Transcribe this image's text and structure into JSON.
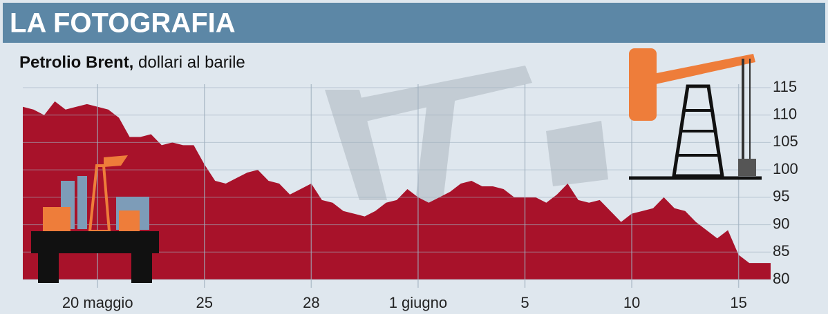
{
  "chart_data": {
    "type": "area",
    "title": "LA FOTOGRAFIA",
    "subtitle": "Petrolio Brent,",
    "subtitle_detail": "dollari al barile",
    "color": "#a8122a",
    "categories": [
      null,
      null,
      null,
      null,
      null,
      null,
      null,
      "20 maggio",
      null,
      null,
      null,
      null,
      null,
      null,
      null,
      null,
      null,
      "25",
      null,
      null,
      null,
      null,
      null,
      null,
      null,
      null,
      null,
      "28",
      null,
      null,
      null,
      null,
      null,
      null,
      null,
      null,
      null,
      "1 giugno",
      null,
      null,
      null,
      null,
      null,
      null,
      null,
      null,
      null,
      "5",
      null,
      null,
      null,
      null,
      null,
      null,
      null,
      null,
      null,
      "10",
      null,
      null,
      null,
      null,
      null,
      null,
      null,
      null,
      null,
      "15",
      null,
      null,
      null
    ],
    "values": [
      111.5,
      111,
      110,
      112.5,
      111,
      111.5,
      112,
      111.5,
      111,
      109.5,
      106,
      106,
      106.5,
      104.5,
      105,
      104.5,
      104.5,
      101,
      98,
      97.5,
      98.5,
      99.5,
      100,
      98,
      97.5,
      95.5,
      96.5,
      97.5,
      94.5,
      94,
      92.5,
      92,
      91.5,
      92.5,
      94,
      94.5,
      96.5,
      95,
      94,
      95,
      96,
      97.5,
      98,
      97,
      97,
      96.5,
      95,
      95,
      95,
      94,
      95.5,
      97.5,
      94.5,
      94,
      94.5,
      92.5,
      90.5,
      92,
      92.5,
      93,
      95,
      93,
      92.5,
      90.5,
      89,
      87.5,
      89,
      84.5,
      83,
      83,
      83
    ],
    "ylim": [
      80,
      115
    ],
    "yticks": [
      80,
      85,
      90,
      95,
      100,
      105,
      110,
      115
    ],
    "grid": true
  }
}
